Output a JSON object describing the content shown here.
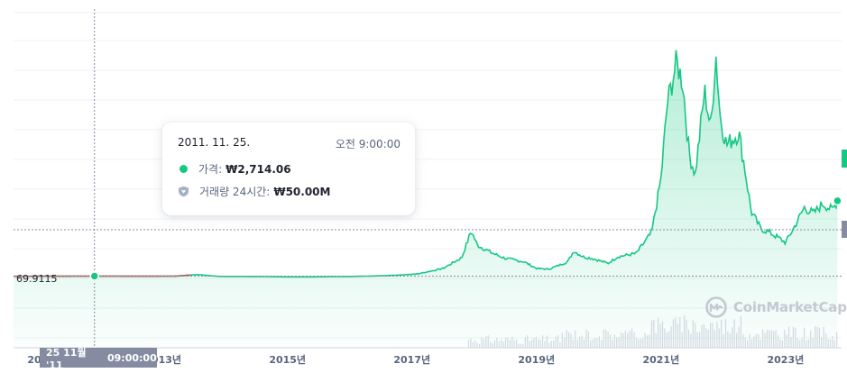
{
  "chart_data": {
    "type": "area",
    "title": "",
    "xlabel": "",
    "ylabel": "",
    "x_tick_labels": [
      "20",
      "2013년",
      "2015년",
      "2017년",
      "2019년",
      "2021년",
      "2023년"
    ],
    "x_tick_years": [
      2011,
      2013,
      2015,
      2017,
      2019,
      2021,
      2023
    ],
    "y_reference_label": "69.9115",
    "xlim": [
      2010.6,
      2023.9
    ],
    "series": [
      {
        "name": "",
        "points": [
          [
            2010.6,
            2500
          ],
          [
            2011.9,
            2714
          ],
          [
            2012.7,
            2600
          ],
          [
            2013.2,
            2700
          ],
          [
            2013.55,
            4600
          ],
          [
            2013.9,
            2400
          ],
          [
            2014.5,
            2300
          ],
          [
            2015.0,
            1800
          ],
          [
            2015.5,
            1900
          ],
          [
            2016.0,
            2300
          ],
          [
            2016.4,
            2900
          ],
          [
            2016.8,
            4000
          ],
          [
            2017.1,
            5500
          ],
          [
            2017.5,
            12000
          ],
          [
            2017.8,
            25000
          ],
          [
            2017.95,
            57000
          ],
          [
            2018.05,
            40000
          ],
          [
            2018.3,
            30000
          ],
          [
            2018.5,
            24000
          ],
          [
            2018.8,
            20000
          ],
          [
            2019.0,
            12000
          ],
          [
            2019.2,
            11000
          ],
          [
            2019.5,
            20000
          ],
          [
            2019.6,
            33000
          ],
          [
            2019.75,
            26000
          ],
          [
            2019.9,
            24000
          ],
          [
            2020.15,
            18000
          ],
          [
            2020.3,
            26000
          ],
          [
            2020.6,
            30000
          ],
          [
            2020.85,
            55000
          ],
          [
            2021.0,
            120000
          ],
          [
            2021.1,
            210000
          ],
          [
            2021.25,
            260000
          ],
          [
            2021.35,
            235000
          ],
          [
            2021.45,
            150000
          ],
          [
            2021.55,
            125000
          ],
          [
            2021.7,
            225000
          ],
          [
            2021.8,
            180000
          ],
          [
            2021.88,
            270000
          ],
          [
            2021.95,
            195000
          ],
          [
            2022.05,
            160000
          ],
          [
            2022.25,
            175000
          ],
          [
            2022.35,
            130000
          ],
          [
            2022.45,
            80000
          ],
          [
            2022.6,
            60000
          ],
          [
            2022.75,
            55000
          ],
          [
            2022.9,
            48000
          ],
          [
            2023.0,
            43000
          ],
          [
            2023.15,
            63000
          ],
          [
            2023.3,
            85000
          ],
          [
            2023.45,
            78000
          ],
          [
            2023.6,
            90000
          ],
          [
            2023.75,
            82000
          ],
          [
            2023.85,
            96000
          ]
        ]
      }
    ],
    "hover_point": {
      "x": 2011.9,
      "y": 2714.06
    },
    "volume_present": true,
    "grid": true,
    "colors": {
      "line": "#16c784",
      "early_line": "#c2574e",
      "area_top": "#16c784",
      "grid": "#eff2f5",
      "axis_text": "#58667e"
    }
  },
  "tooltip": {
    "date": "2011. 11. 25.",
    "time": "오전 9:00:00",
    "price_label": "가격:",
    "price_value": "₩2,714.06",
    "volume_label": "거래량 24시간:",
    "volume_value": "₩50.00M"
  },
  "crosshair": {
    "date_label": "25 11월 '11",
    "time_label": "09:00:00"
  },
  "watermark": {
    "text": "CoinMarketCap",
    "icon": "coinmarketcap-logo-icon"
  }
}
